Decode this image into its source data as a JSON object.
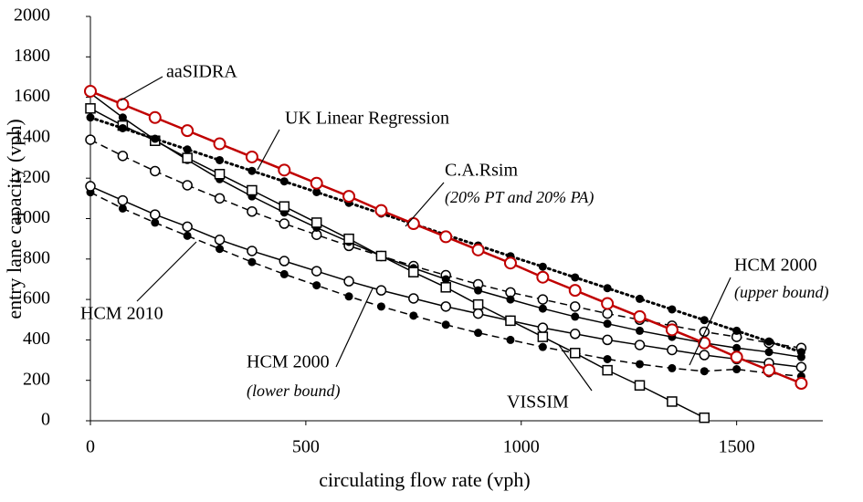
{
  "chart_data": {
    "type": "line",
    "x_label": "circulating flow rate (vph)",
    "y_label": "entry lane capacity (vph)",
    "x": [
      0,
      75,
      150,
      225,
      300,
      375,
      450,
      525,
      600,
      675,
      750,
      825,
      900,
      975,
      1050,
      1125,
      1200,
      1275,
      1350,
      1425,
      1500,
      1575,
      1650
    ],
    "xlim": [
      0,
      1700
    ],
    "xticks": [
      0,
      500,
      1000,
      1500
    ],
    "ylim": [
      0,
      2000
    ],
    "yticks": [
      0,
      200,
      400,
      600,
      800,
      1000,
      1200,
      1400,
      1600,
      1800,
      2000
    ],
    "grid": false,
    "series": [
      {
        "color": "#000000",
        "dash": "dashed",
        "marker": "filled-circle",
        "values": [
          1130,
          1050,
          980,
          915,
          850,
          785,
          725,
          670,
          615,
          565,
          520,
          475,
          435,
          400,
          365,
          335,
          305,
          280,
          260,
          245,
          255,
          235,
          220
        ]
      },
      {
        "color": "#000000",
        "dash": "solid",
        "marker": "open-circle",
        "values": [
          1160,
          1090,
          1020,
          960,
          895,
          840,
          790,
          740,
          690,
          645,
          605,
          565,
          530,
          495,
          460,
          430,
          400,
          375,
          350,
          325,
          305,
          285,
          265
        ]
      },
      {
        "color": "#000000",
        "dash": "dashed",
        "marker": "open-circle",
        "values": [
          1390,
          1310,
          1235,
          1165,
          1100,
          1035,
          975,
          920,
          865,
          815,
          765,
          720,
          675,
          635,
          600,
          565,
          530,
          500,
          470,
          440,
          415,
          385,
          360
        ]
      },
      {
        "color": "#000000",
        "dash": "solid",
        "marker": "filled-circle",
        "values": [
          1620,
          1500,
          1390,
          1290,
          1195,
          1110,
          1030,
          955,
          885,
          815,
          755,
          700,
          645,
          600,
          555,
          515,
          480,
          445,
          415,
          385,
          360,
          340,
          315
        ]
      },
      {
        "color": "#000000",
        "dash": "solid",
        "marker": "open-square",
        "values": [
          1545,
          1460,
          1385,
          1300,
          1220,
          1140,
          1060,
          980,
          900,
          815,
          735,
          660,
          575,
          495,
          415,
          335,
          250,
          175,
          95,
          15,
          null,
          null,
          null
        ]
      },
      {
        "color": "#000000",
        "dash": "dotted",
        "marker": "filled-circle",
        "values": [
          1500,
          1447,
          1395,
          1342,
          1289,
          1236,
          1184,
          1131,
          1078,
          1025,
          973,
          920,
          867,
          814,
          762,
          709,
          656,
          603,
          551,
          498,
          445,
          392,
          340
        ]
      },
      {
        "color": "#c00000",
        "dash": "solid",
        "marker": "open-circle",
        "values": [
          1630,
          1565,
          1500,
          1435,
          1370,
          1305,
          1240,
          1175,
          1110,
          1040,
          975,
          910,
          845,
          780,
          710,
          645,
          580,
          515,
          450,
          385,
          315,
          250,
          185
        ]
      }
    ],
    "annotations": [
      {
        "text": "aaSIDRA",
        "italic": false
      },
      {
        "text": "UK Linear Regression",
        "italic": false
      },
      {
        "text": "C.A.Rsim",
        "italic": false
      },
      {
        "text": "(20% PT and 20% PA)",
        "italic": true
      },
      {
        "text": "HCM 2000",
        "italic": false
      },
      {
        "text": "(upper bound)",
        "italic": true
      },
      {
        "text": "HCM 2010",
        "italic": false
      },
      {
        "text": "HCM 2000",
        "italic": false
      },
      {
        "text": "(lower bound)",
        "italic": true
      },
      {
        "text": "VISSIM",
        "italic": false
      }
    ]
  }
}
